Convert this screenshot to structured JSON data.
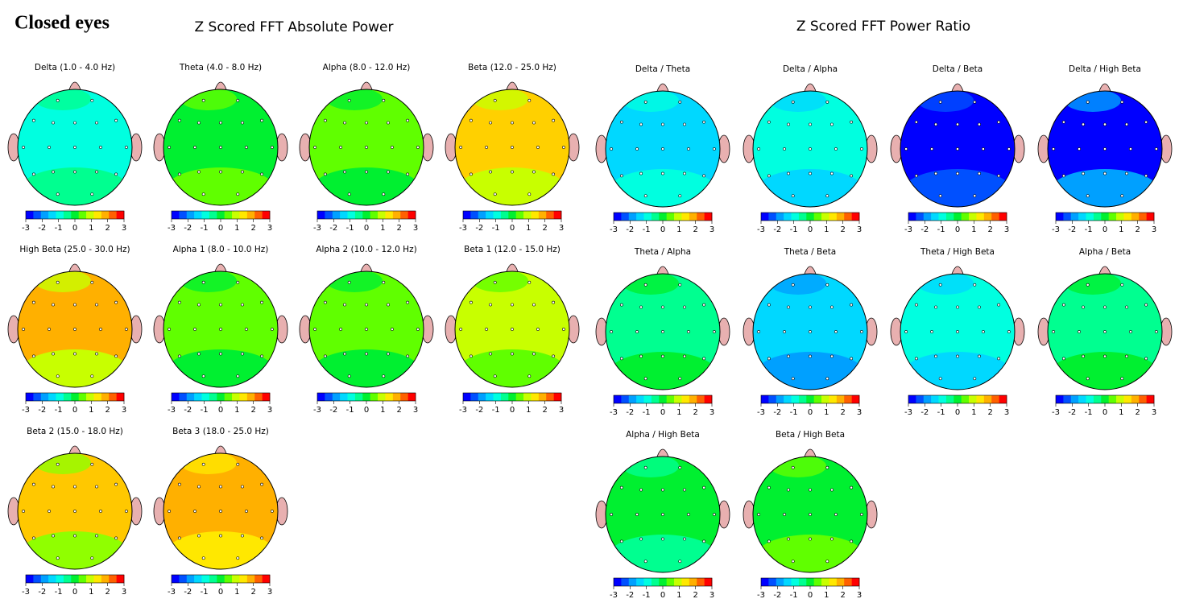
{
  "title": "Closed eyes",
  "colorbar": {
    "ticks": [
      -3,
      -2,
      -1,
      0,
      1,
      2,
      3
    ],
    "colors": [
      "#0000ff",
      "#0050ff",
      "#00a0ff",
      "#00d8ff",
      "#00ffe0",
      "#00ff90",
      "#00f030",
      "#60ff00",
      "#c8ff00",
      "#ffe800",
      "#ffb000",
      "#ff6000",
      "#ff0000"
    ]
  },
  "sections": [
    {
      "title": "Z Scored FFT Absolute Power",
      "maps": [
        {
          "label": "Delta (1.0 - 4.0 Hz)",
          "color": "#00ffe0",
          "accent": "#00ff90"
        },
        {
          "label": "Theta (4.0 - 8.0 Hz)",
          "color": "#00f030",
          "accent": "#60ff00"
        },
        {
          "label": "Alpha (8.0 - 12.0 Hz)",
          "color": "#60ff00",
          "accent": "#00f030"
        },
        {
          "label": "Beta (12.0 - 25.0 Hz)",
          "color": "#ffd000",
          "accent": "#c8ff00"
        },
        {
          "label": "High Beta (25.0 - 30.0 Hz)",
          "color": "#ffb000",
          "accent": "#c8ff00"
        },
        {
          "label": "Alpha 1 (8.0 - 10.0 Hz)",
          "color": "#60ff00",
          "accent": "#00f030"
        },
        {
          "label": "Alpha 2 (10.0 - 12.0 Hz)",
          "color": "#60ff00",
          "accent": "#00f030"
        },
        {
          "label": "Beta 1 (12.0 - 15.0 Hz)",
          "color": "#c8ff00",
          "accent": "#60ff00"
        },
        {
          "label": "Beta 2 (15.0 - 18.0 Hz)",
          "color": "#ffc800",
          "accent": "#90ff00"
        },
        {
          "label": "Beta 3 (18.0 - 25.0 Hz)",
          "color": "#ffb000",
          "accent": "#ffe800"
        }
      ]
    },
    {
      "title": "Z Scored FFT Power Ratio",
      "maps": [
        {
          "label": "Delta / Theta",
          "color": "#00d8ff",
          "accent": "#00ffe0"
        },
        {
          "label": "Delta / Alpha",
          "color": "#00ffe0",
          "accent": "#00d8ff"
        },
        {
          "label": "Delta / Beta",
          "color": "#0000ff",
          "accent": "#0050ff"
        },
        {
          "label": "Delta / High Beta",
          "color": "#0000ff",
          "accent": "#00a0ff"
        },
        {
          "label": "Theta / Alpha",
          "color": "#00ff90",
          "accent": "#00f030"
        },
        {
          "label": "Theta / Beta",
          "color": "#00d8ff",
          "accent": "#00a0ff"
        },
        {
          "label": "Theta / High Beta",
          "color": "#00ffe0",
          "accent": "#00d8ff"
        },
        {
          "label": "Alpha / Beta",
          "color": "#00ff90",
          "accent": "#00f030"
        },
        {
          "label": "Alpha / High Beta",
          "color": "#00f030",
          "accent": "#00ff90"
        },
        {
          "label": "Beta / High Beta",
          "color": "#00f030",
          "accent": "#60ff00"
        }
      ]
    }
  ]
}
